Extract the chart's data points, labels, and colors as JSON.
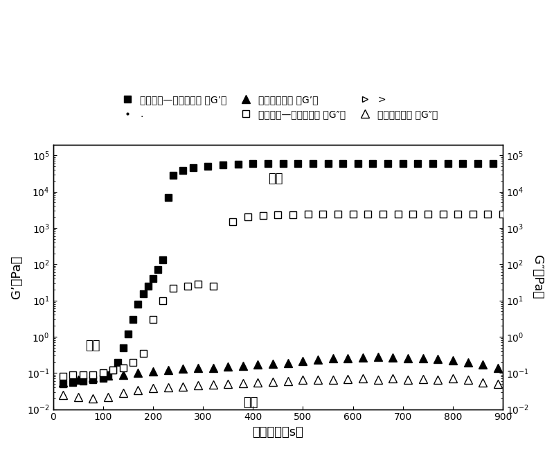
{
  "title": "",
  "xlabel": "加热时间（s）",
  "ylabel_left": "G’（Pa）",
  "ylabel_right": "G″（Pa）",
  "annotation_gel": "凝胶",
  "annotation_sol1": "溶液",
  "annotation_sol2": "溶液",
  "legend_row1": [
    "低酰果胶—钒离子溶液 《G’》",
    ".",
    "低酰果胶溶液 《G’》"
  ],
  "legend_row2": [
    "低酰果胶—钒离子溶液 《G″》",
    ">",
    "低酰果胶溶液 《G″》"
  ],
  "G_prime_ca": {
    "x": [
      20,
      40,
      60,
      80,
      100,
      110,
      120,
      130,
      140,
      150,
      160,
      170,
      180,
      190,
      200,
      210,
      220,
      230,
      240,
      260,
      280,
      310,
      340,
      370,
      400,
      430,
      460,
      490,
      520,
      550,
      580,
      610,
      640,
      670,
      700,
      730,
      760,
      790,
      820,
      850,
      880,
      910
    ],
    "y": [
      0.05,
      0.055,
      0.06,
      0.065,
      0.07,
      0.09,
      0.12,
      0.2,
      0.5,
      1.2,
      3.0,
      8.0,
      15.0,
      25.0,
      40.0,
      70.0,
      130.0,
      7000.0,
      28000.0,
      38000.0,
      45000.0,
      50000.0,
      55000.0,
      58000.0,
      60000.0,
      61000.0,
      61000.0,
      61000.0,
      61000.0,
      61000.0,
      61000.0,
      61000.0,
      61000.0,
      61000.0,
      61000.0,
      61000.0,
      61000.0,
      61000.0,
      61000.0,
      61000.0,
      61000.0,
      61000.0
    ]
  },
  "G_doubleprime_ca": {
    "x": [
      20,
      40,
      60,
      80,
      100,
      120,
      140,
      160,
      180,
      200,
      220,
      240,
      270,
      290,
      320,
      360,
      390,
      420,
      450,
      480,
      510,
      540,
      570,
      600,
      630,
      660,
      690,
      720,
      750,
      780,
      810,
      840,
      870,
      900
    ],
    "y": [
      0.08,
      0.09,
      0.09,
      0.09,
      0.1,
      0.12,
      0.14,
      0.2,
      0.35,
      3.0,
      10.0,
      22.0,
      25.0,
      28.0,
      25.0,
      1500.0,
      2000.0,
      2200.0,
      2300.0,
      2350.0,
      2380.0,
      2380.0,
      2380.0,
      2380.0,
      2380.0,
      2380.0,
      2380.0,
      2380.0,
      2380.0,
      2380.0,
      2380.0,
      2380.0,
      2380.0,
      2380.0
    ]
  },
  "G_prime_sol": {
    "x": [
      20,
      50,
      80,
      110,
      140,
      170,
      200,
      230,
      260,
      290,
      320,
      350,
      380,
      410,
      440,
      470,
      500,
      530,
      560,
      590,
      620,
      650,
      680,
      710,
      740,
      770,
      800,
      830,
      860,
      890
    ],
    "y": [
      0.055,
      0.065,
      0.075,
      0.085,
      0.09,
      0.1,
      0.11,
      0.12,
      0.13,
      0.14,
      0.14,
      0.15,
      0.16,
      0.17,
      0.18,
      0.19,
      0.21,
      0.23,
      0.25,
      0.26,
      0.27,
      0.28,
      0.27,
      0.26,
      0.25,
      0.24,
      0.22,
      0.2,
      0.17,
      0.14
    ]
  },
  "G_doubleprime_sol": {
    "x": [
      20,
      50,
      80,
      110,
      140,
      170,
      200,
      230,
      260,
      290,
      320,
      350,
      380,
      410,
      440,
      470,
      500,
      530,
      560,
      590,
      620,
      650,
      680,
      710,
      740,
      770,
      800,
      830,
      860,
      890
    ],
    "y": [
      0.025,
      0.022,
      0.02,
      0.022,
      0.028,
      0.033,
      0.038,
      0.04,
      0.042,
      0.045,
      0.048,
      0.05,
      0.052,
      0.055,
      0.058,
      0.06,
      0.065,
      0.065,
      0.065,
      0.068,
      0.07,
      0.065,
      0.07,
      0.065,
      0.068,
      0.065,
      0.07,
      0.065,
      0.055,
      0.05
    ]
  },
  "xlim": [
    0,
    900
  ],
  "ylim": [
    0.01,
    200000
  ],
  "xticks": [
    0,
    100,
    200,
    300,
    400,
    500,
    600,
    700,
    800,
    900
  ],
  "background_color": "#ffffff"
}
